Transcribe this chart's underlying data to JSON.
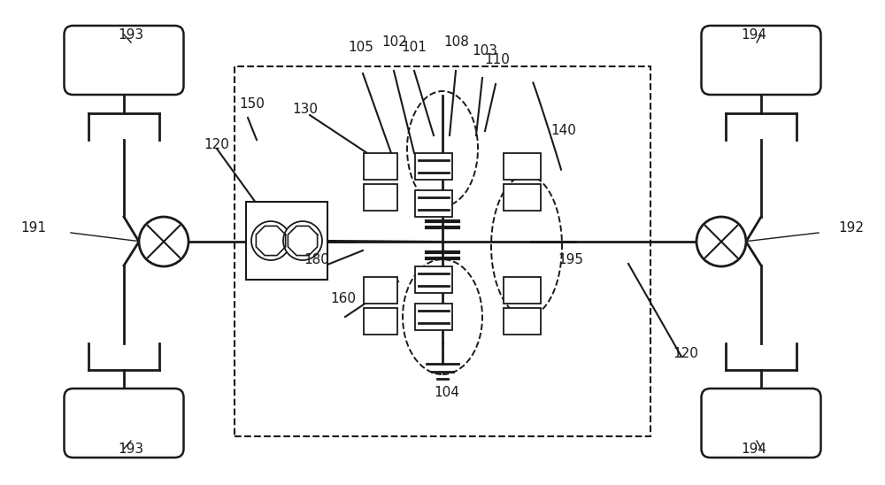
{
  "bg_color": "#ffffff",
  "line_color": "#1a1a1a",
  "gray_color": "#666666",
  "figsize": [
    10.0,
    5.48
  ],
  "dpi": 100
}
